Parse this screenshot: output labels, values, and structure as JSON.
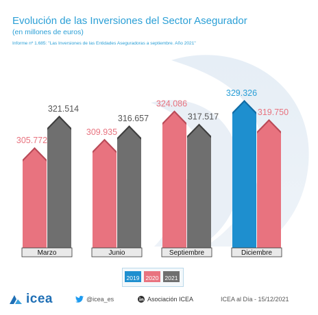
{
  "header": {
    "title": "Evolución de las Inversiones del Sector Asegurador",
    "subtitle": "(en millones de euros)",
    "report": "Informe nº 1.685: \"Las Inversiones de las Entidades Aseguradoras a septiembre. Año 2021\""
  },
  "chart_data": {
    "type": "bar",
    "categories": [
      "Marzo",
      "Junio",
      "Septiembre",
      "Diciembre"
    ],
    "series": [
      {
        "name": "2019",
        "color": "#1e8fcf",
        "values": [
          null,
          null,
          null,
          329.326
        ],
        "labels": [
          null,
          null,
          null,
          "329.326"
        ]
      },
      {
        "name": "2020",
        "color": "#e8737f",
        "values": [
          305.772,
          309.935,
          324.086,
          319.75
        ],
        "labels": [
          "305.772",
          "309.935",
          "324.086",
          "319.750"
        ]
      },
      {
        "name": "2021",
        "color": "#6f6f6f",
        "values": [
          321.514,
          316.657,
          317.517,
          null
        ],
        "labels": [
          "321.514",
          "316.657",
          "317.517",
          null
        ]
      }
    ],
    "legend_position": "bottom-center",
    "grid": false
  },
  "footer": {
    "logo": "icea",
    "twitter": "@icea_es",
    "linkedin": "Asociación ICEA",
    "credit": "ICEA al Día - 15/12/2021"
  }
}
